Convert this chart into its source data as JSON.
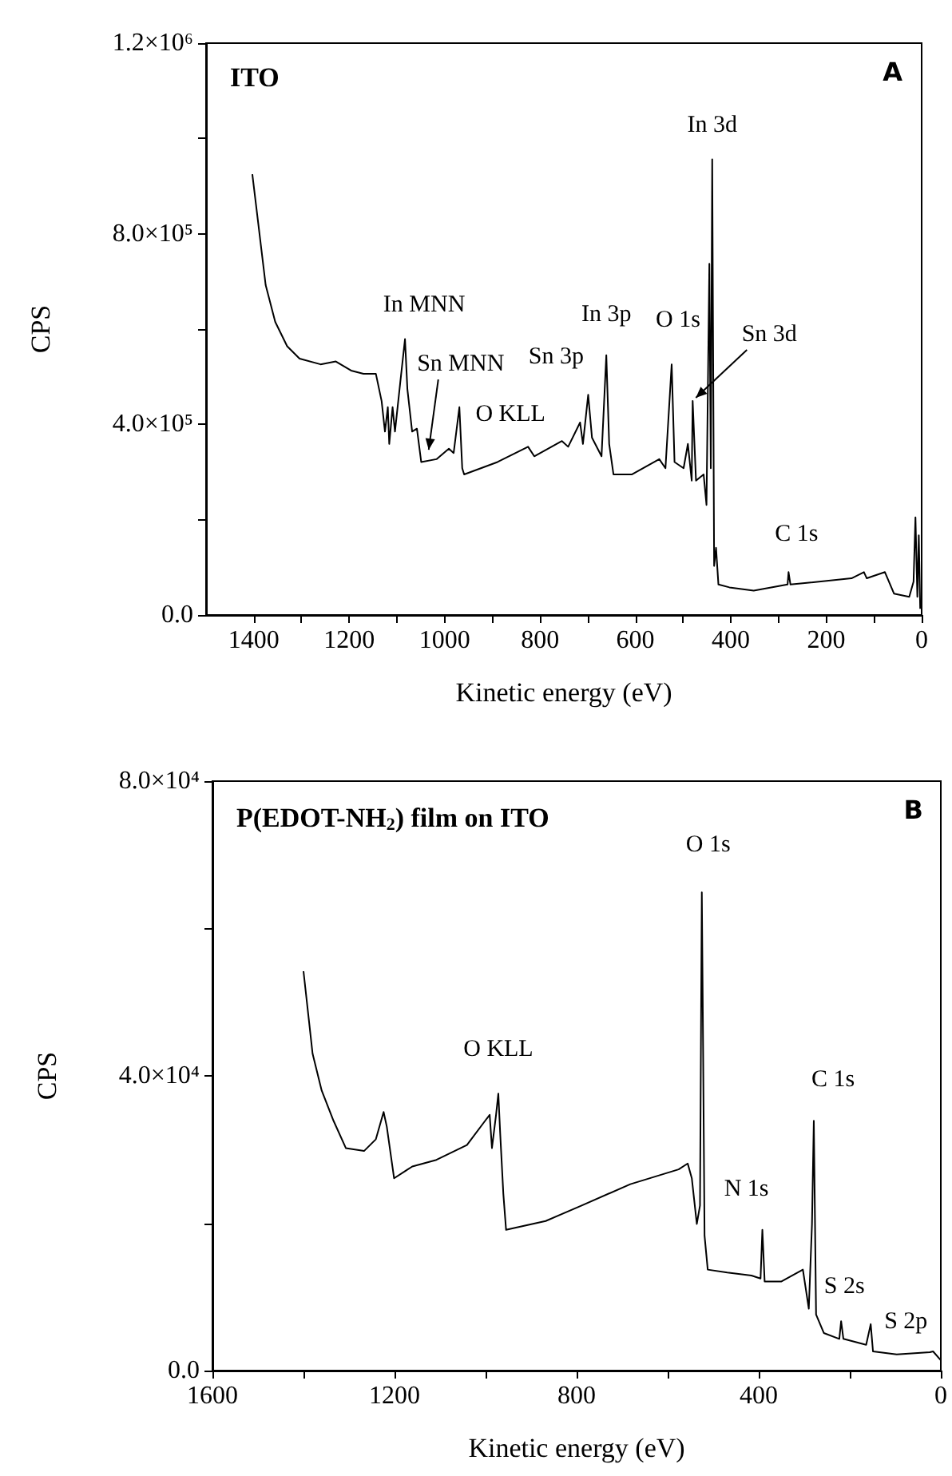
{
  "chart_data": [
    {
      "type": "line",
      "title": "ITO",
      "xlabel": "Kinetic energy (eV)",
      "ylabel": "CPS",
      "xlim": [
        1500,
        0
      ],
      "xticks": [
        1400,
        {
          "value": 1300,
          "label": null
        },
        1200,
        {
          "value": 1100,
          "label": null
        },
        1000,
        {
          "value": 900,
          "label": null
        },
        800,
        {
          "value": 700,
          "label": null
        },
        600,
        {
          "value": 500,
          "label": null
        },
        400,
        {
          "value": 300,
          "label": null
        },
        200,
        {
          "value": 100,
          "label": null
        },
        0
      ],
      "ylim": [
        0,
        1200000
      ],
      "yticks": [
        {
          "value": 0,
          "label": "0.0"
        },
        {
          "value": 200000,
          "label": null
        },
        {
          "value": 400000,
          "label": "4.0×10⁵"
        },
        {
          "value": 600000,
          "label": null
        },
        {
          "value": 800000,
          "label": "8.0×10⁵"
        },
        {
          "value": 1000000,
          "label": null
        },
        {
          "value": 1200000,
          "label": "1.2×10⁶"
        }
      ],
      "series": [
        {
          "color": "#000000",
          "x": [
            1403,
            1375,
            1355,
            1330,
            1304,
            1260,
            1228,
            1196,
            1170,
            1144,
            1132,
            1125,
            1119,
            1116,
            1109,
            1104,
            1093,
            1083,
            1078,
            1068,
            1058,
            1049,
            1017,
            991,
            981,
            969,
            963,
            959,
            889,
            825,
            812,
            754,
            741,
            716,
            710,
            699,
            691,
            671,
            661,
            655,
            646,
            607,
            550,
            537,
            524,
            518,
            499,
            490,
            482,
            480,
            473,
            457,
            451,
            445,
            442,
            439,
            435,
            431,
            426,
            403,
            352,
            281,
            279,
            275,
            147,
            121,
            115,
            77,
            58,
            26,
            17,
            13,
            9,
            6,
            3
          ],
          "values": [
            925000,
            692000,
            615000,
            564000,
            538000,
            526000,
            532000,
            513000,
            506000,
            506000,
            449000,
            385000,
            436000,
            359000,
            436000,
            385000,
            487000,
            579000,
            474000,
            385000,
            391000,
            321000,
            327000,
            349000,
            340000,
            436000,
            308000,
            295000,
            321000,
            353000,
            333000,
            365000,
            353000,
            404000,
            359000,
            462000,
            372000,
            333000,
            545000,
            359000,
            295000,
            295000,
            327000,
            308000,
            526000,
            321000,
            308000,
            359000,
            282000,
            449000,
            282000,
            295000,
            231000,
            737000,
            308000,
            956000,
            103000,
            141000,
            64000,
            58000,
            51000,
            64000,
            90000,
            64000,
            77000,
            90000,
            77000,
            90000,
            45000,
            38000,
            70000,
            205000,
            38000,
            167000,
            13000
          ]
        }
      ],
      "annotations": [
        "A",
        {
          "text": "In 3d",
          "x": 439,
          "y": 956000
        },
        {
          "text": "In MNN",
          "x": 1083,
          "y": 579000
        },
        {
          "text": "Sn MNN",
          "x": 1040,
          "y": 340000
        },
        {
          "text": "O KLL",
          "x": 969,
          "y": 436000
        },
        {
          "text": "Sn 3p",
          "x": 699,
          "y": 462000
        },
        {
          "text": "In 3p",
          "x": 661,
          "y": 545000
        },
        {
          "text": "O 1s",
          "x": 524,
          "y": 526000
        },
        {
          "text": "Sn 3d",
          "x": 480,
          "y": 449000
        },
        {
          "text": "C 1s",
          "x": 279,
          "y": 90000
        }
      ]
    },
    {
      "type": "line",
      "title": "P(EDOT-NH$_{2}$) film on ITO",
      "xlabel": "Kinetic energy (eV)",
      "ylabel": "CPS",
      "xlim": [
        1600,
        0
      ],
      "xticks": [
        1600,
        {
          "value": 1400,
          "label": null
        },
        1200,
        {
          "value": 1000,
          "label": null
        },
        800,
        {
          "value": 600,
          "label": null
        },
        400,
        {
          "value": 200,
          "label": null
        },
        0
      ],
      "ylim": [
        0,
        80000
      ],
      "yticks": [
        {
          "value": 0,
          "label": "0.0"
        },
        {
          "value": 20000,
          "label": null
        },
        {
          "value": 40000,
          "label": "4.0×10⁴"
        },
        {
          "value": 60000,
          "label": null
        },
        {
          "value": 80000,
          "label": "8.0×10⁴"
        }
      ],
      "series": [
        {
          "color": "#000000",
          "x": [
            1400,
            1380,
            1360,
            1334,
            1307,
            1267,
            1241,
            1224,
            1217,
            1201,
            1161,
            1108,
            1041,
            1001,
            991,
            986,
            977,
            972,
            968,
            961,
            955,
            868,
            789,
            682,
            576,
            556,
            547,
            536,
            529,
            525,
            523,
            519,
            512,
            469,
            416,
            396,
            392,
            387,
            350,
            303,
            290,
            283,
            279,
            274,
            257,
            223,
            219,
            214,
            164,
            154,
            149,
            97,
            24,
            17,
            0
          ],
          "values": [
            54200,
            43000,
            38000,
            33900,
            30200,
            29800,
            31400,
            35100,
            33100,
            26100,
            27700,
            28600,
            30600,
            33900,
            34700,
            30200,
            34700,
            37600,
            32300,
            24000,
            19100,
            20300,
            22400,
            25300,
            27300,
            28100,
            26100,
            19900,
            22400,
            64900,
            50000,
            18300,
            13700,
            13300,
            12900,
            12500,
            19100,
            12100,
            12100,
            13700,
            8400,
            19900,
            33900,
            7600,
            5100,
            4300,
            6700,
            4300,
            3500,
            6300,
            2600,
            2200,
            2500,
            2600,
            1400
          ]
        }
      ],
      "annotations": [
        "B",
        {
          "text": "O 1s",
          "x": 525,
          "y": 64900
        },
        {
          "text": "O KLL",
          "x": 972,
          "y": 37600
        },
        {
          "text": "N 1s",
          "x": 392,
          "y": 19100
        },
        {
          "text": "C 1s",
          "x": 279,
          "y": 33900
        },
        {
          "text": "S 2s",
          "x": 219,
          "y": 6700
        },
        {
          "text": "S 2p",
          "x": 154,
          "y": 6300
        }
      ]
    }
  ]
}
